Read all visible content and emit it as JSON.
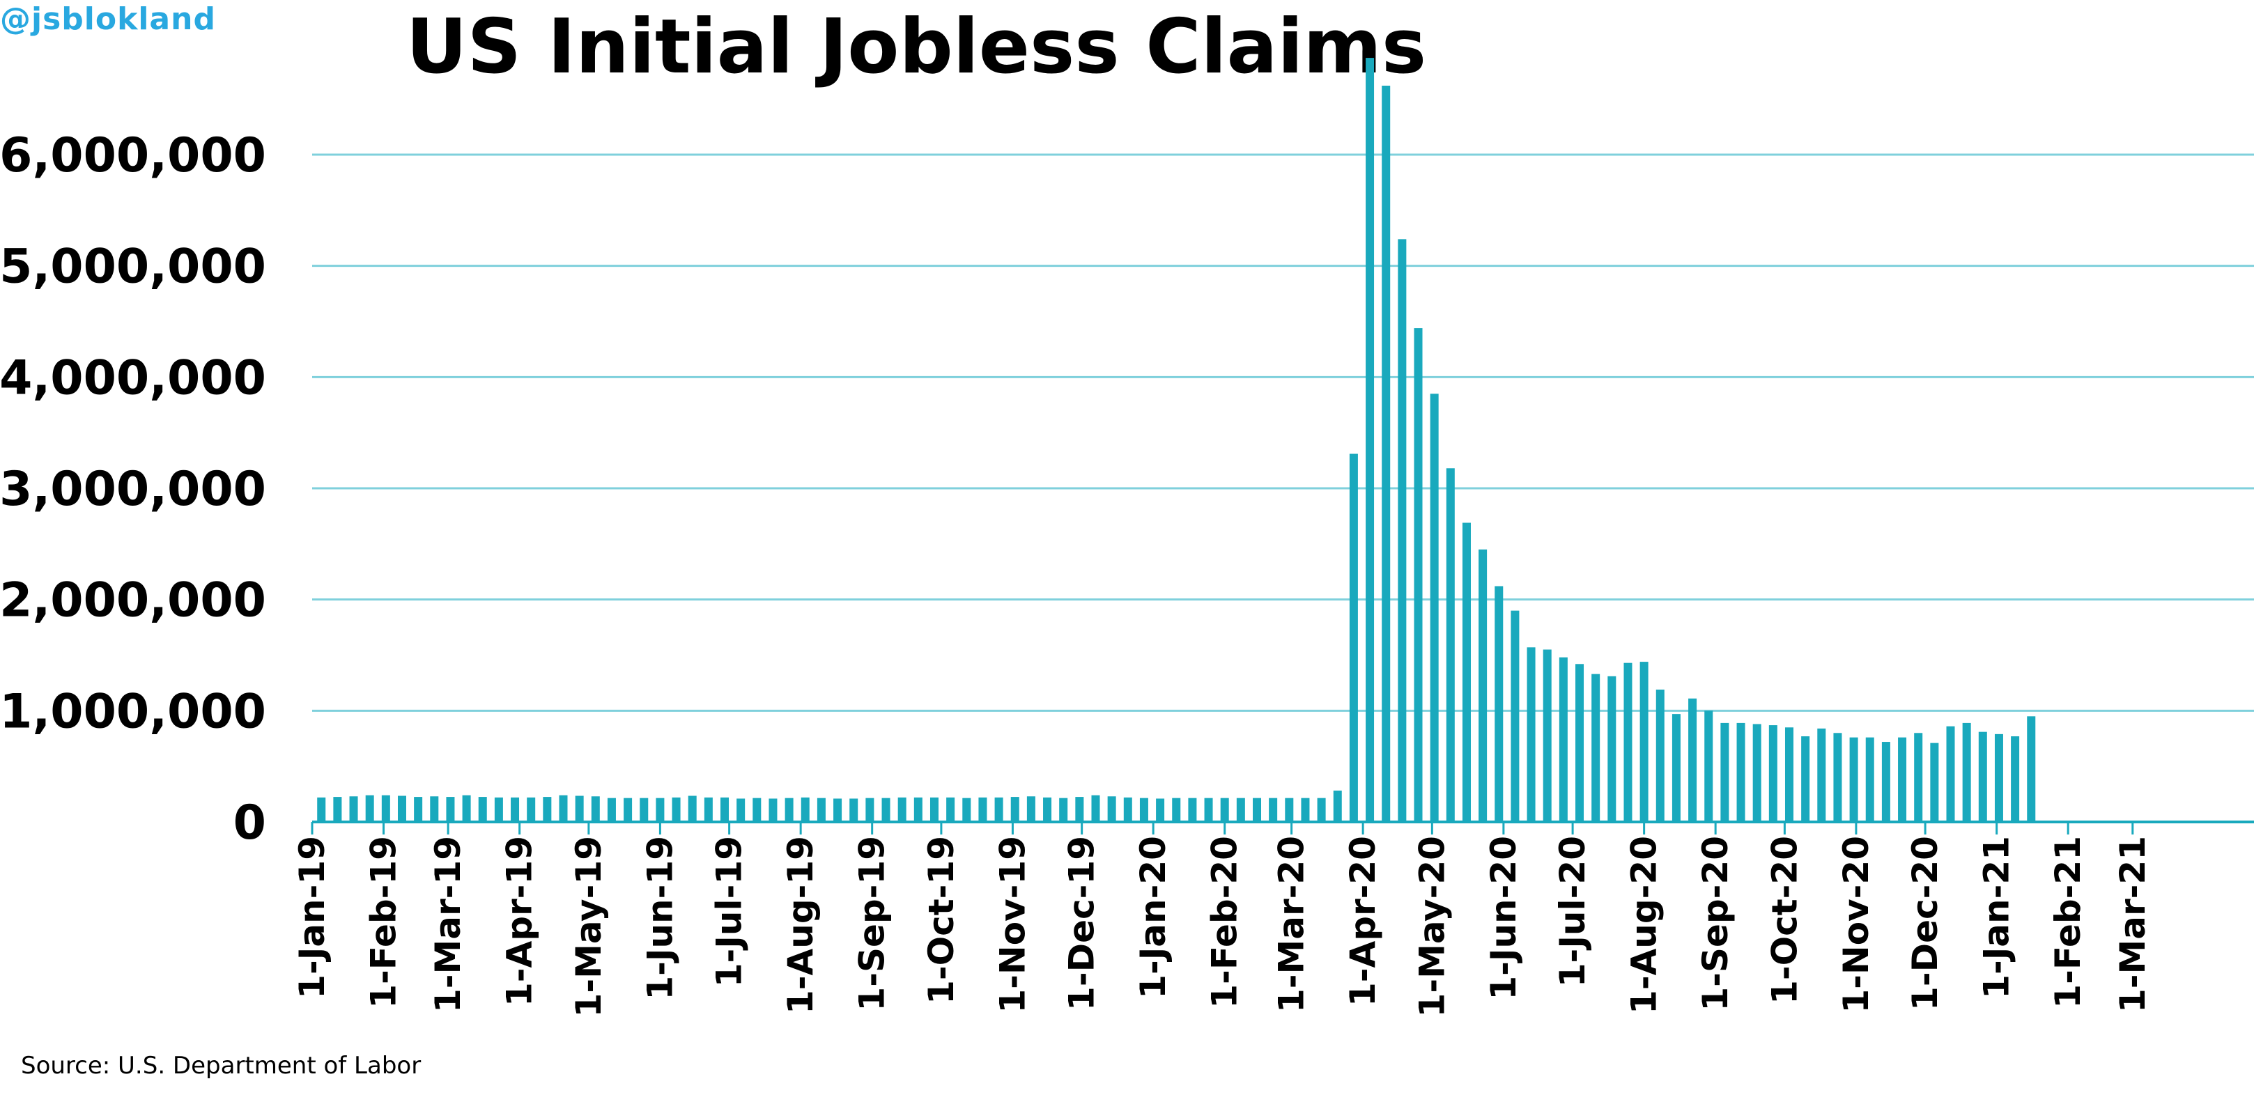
{
  "handle": "@jsblokland",
  "source": "Source: U.S. Department of Labor",
  "colors": {
    "bar": "#19a9bd",
    "grid": "#7fd0dc",
    "axis": "#19a9bd",
    "text": "#000000",
    "handle": "#29a8e0"
  },
  "chart_data": {
    "type": "bar",
    "title": "US Initial Jobless Claims",
    "xlabel": "",
    "ylabel": "",
    "ylim": [
      0,
      6800000
    ],
    "yticks": [
      0,
      1000000,
      2000000,
      3000000,
      4000000,
      5000000,
      6000000
    ],
    "ytick_labels": [
      "0",
      "1,000,000",
      "2,000,000",
      "3,000,000",
      "4,000,000",
      "5,000,000",
      "6,000,000"
    ],
    "xlim": [
      "2019-01-01",
      "2021-03-31"
    ],
    "xticks": [
      "2019-01-01",
      "2019-02-01",
      "2019-03-01",
      "2019-04-01",
      "2019-05-01",
      "2019-06-01",
      "2019-07-01",
      "2019-08-01",
      "2019-09-01",
      "2019-10-01",
      "2019-11-01",
      "2019-12-01",
      "2020-01-01",
      "2020-02-01",
      "2020-03-01",
      "2020-04-01",
      "2020-05-01",
      "2020-06-01",
      "2020-07-01",
      "2020-08-01",
      "2020-09-01",
      "2020-10-01",
      "2020-11-01",
      "2020-12-01",
      "2021-01-01",
      "2021-02-01",
      "2021-03-01"
    ],
    "xtick_labels": [
      "1-Jan-19",
      "1-Feb-19",
      "1-Mar-19",
      "1-Apr-19",
      "1-May-19",
      "1-Jun-19",
      "1-Jul-19",
      "1-Aug-19",
      "1-Sep-19",
      "1-Oct-19",
      "1-Nov-19",
      "1-Dec-19",
      "1-Jan-20",
      "1-Feb-20",
      "1-Mar-20",
      "1-Apr-20",
      "1-May-20",
      "1-Jun-20",
      "1-Jul-20",
      "1-Aug-20",
      "1-Sep-20",
      "1-Oct-20",
      "1-Nov-20",
      "1-Dec-20",
      "1-Jan-21",
      "1-Feb-21",
      "1-Mar-21"
    ],
    "grid": true,
    "legend": "none",
    "first_week": "2019-01-05",
    "values": [
      220000,
      225000,
      230000,
      240000,
      240000,
      235000,
      225000,
      230000,
      225000,
      240000,
      225000,
      220000,
      220000,
      220000,
      225000,
      240000,
      235000,
      230000,
      215000,
      215000,
      215000,
      215000,
      220000,
      235000,
      220000,
      220000,
      210000,
      215000,
      210000,
      215000,
      220000,
      215000,
      210000,
      210000,
      215000,
      215000,
      220000,
      220000,
      220000,
      220000,
      215000,
      220000,
      220000,
      225000,
      230000,
      220000,
      215000,
      225000,
      240000,
      230000,
      220000,
      215000,
      210000,
      215000,
      215000,
      215000,
      215000,
      215000,
      215000,
      215000,
      215000,
      215000,
      215000,
      282000,
      3310000,
      6870000,
      6620000,
      5240000,
      4440000,
      3850000,
      3180000,
      2690000,
      2450000,
      2120000,
      1900000,
      1570000,
      1550000,
      1480000,
      1420000,
      1330000,
      1310000,
      1430000,
      1440000,
      1190000,
      970000,
      1110000,
      1000000,
      890000,
      890000,
      880000,
      870000,
      850000,
      770000,
      840000,
      800000,
      760000,
      760000,
      720000,
      760000,
      800000,
      710000,
      860000,
      890000,
      810000,
      790000,
      770000,
      950000
    ]
  }
}
